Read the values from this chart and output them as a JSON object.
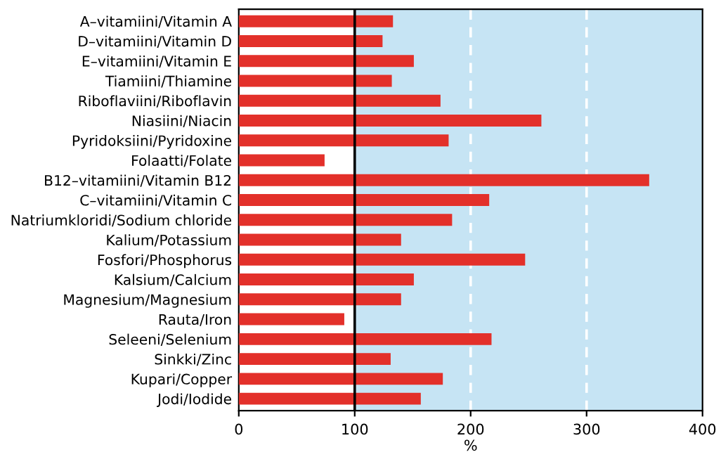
{
  "chart_data": {
    "type": "bar",
    "orientation": "horizontal",
    "xlabel": "%",
    "categories": [
      "A–vitamiini/Vitamin A",
      "D–vitamiini/Vitamin D",
      "E–vitamiini/Vitamin E",
      "Tiamiini/Thiamine",
      "Riboflaviini/Riboflavin",
      "Niasiini/Niacin",
      "Pyridoksiini/Pyridoxine",
      "Folaatti/Folate",
      "B12–vitamiini/Vitamin B12",
      "C–vitamiini/Vitamin C",
      "Natriumkloridi/Sodium chloride",
      "Kalium/Potassium",
      "Fosfori/Phosphorus",
      "Kalsium/Calcium",
      "Magnesium/Magnesium",
      "Rauta/Iron",
      "Seleeni/Selenium",
      "Sinkki/Zinc",
      "Kupari/Copper",
      "Jodi/Iodide"
    ],
    "values": [
      133,
      124,
      151,
      132,
      174,
      261,
      181,
      74,
      354,
      216,
      184,
      140,
      247,
      151,
      140,
      91,
      218,
      131,
      176,
      157
    ],
    "color": "#e3302a",
    "xlim": [
      0,
      400
    ],
    "xticks": [
      0,
      100,
      200,
      300,
      400
    ],
    "bands": [
      {
        "axis": "x",
        "from": 100,
        "to": 400,
        "color": "#c6e4f4"
      }
    ],
    "ref_lines": [
      {
        "axis": "x",
        "value": 100,
        "color": "#000000",
        "line_style": "solid"
      },
      {
        "axis": "x",
        "value": 200,
        "color": "#ffffff",
        "line_style": "dashed"
      },
      {
        "axis": "x",
        "value": 300,
        "color": "#ffffff",
        "line_style": "dashed"
      }
    ],
    "grid": false,
    "legend": false
  }
}
